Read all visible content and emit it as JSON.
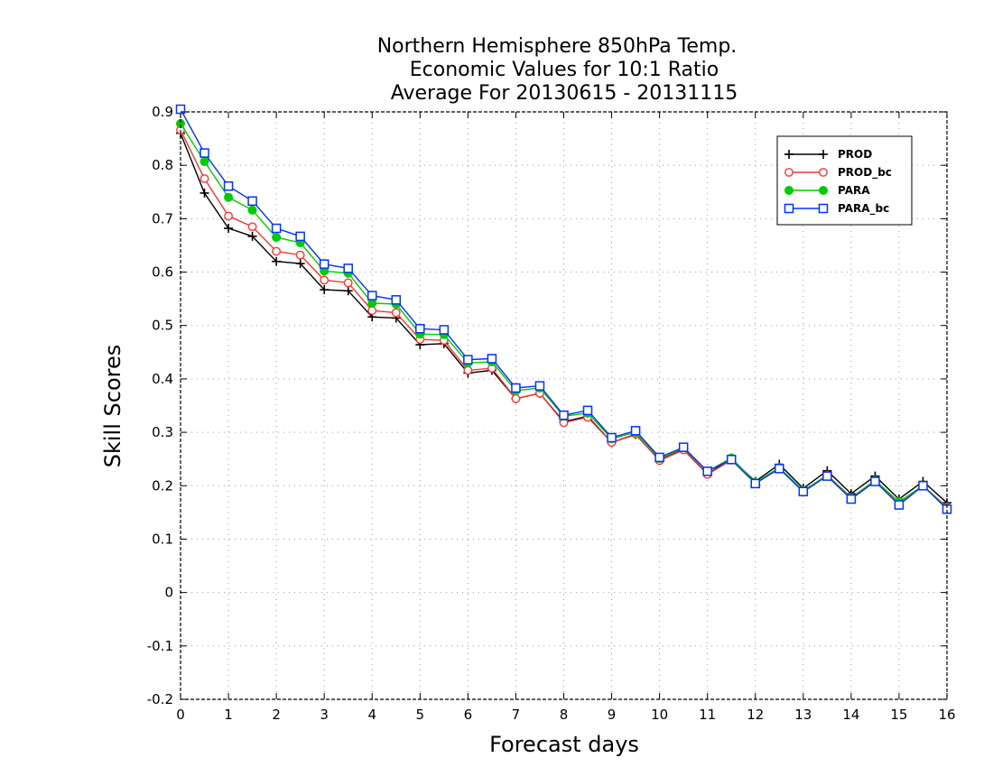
{
  "chart_data": {
    "type": "line",
    "title_lines": [
      "Northern Hemisphere 850hPa Temp.",
      "Economic Values for 10:1 Ratio",
      "Average For 20130615 - 20131115"
    ],
    "xlabel": "Forecast days",
    "ylabel": "Skill Scores",
    "xlim": [
      0,
      16
    ],
    "ylim": [
      -0.2,
      0.9
    ],
    "x_ticks": [
      "0",
      "1",
      "2",
      "3",
      "4",
      "5",
      "6",
      "7",
      "8",
      "9",
      "10",
      "11",
      "12",
      "13",
      "14",
      "15",
      "16"
    ],
    "y_ticks": [
      "0.9",
      "0.8",
      "0.7",
      "0.6",
      "0.5",
      "0.4",
      "0.3",
      "0.2",
      "0.1",
      "0",
      "-0.1",
      "-0.2"
    ],
    "grid": true,
    "legend_position": "top-right",
    "x": [
      0,
      0.5,
      1,
      1.5,
      2,
      2.5,
      3,
      3.5,
      4,
      4.5,
      5,
      5.5,
      6,
      6.5,
      7,
      7.5,
      8,
      8.5,
      9,
      9.5,
      10,
      10.5,
      11,
      11.5,
      12,
      12.5,
      13,
      13.5,
      14,
      14.5,
      15,
      15.5,
      16
    ],
    "series": [
      {
        "name": "PROD",
        "color": "#000000",
        "marker": "plus",
        "values": [
          0.86,
          0.748,
          0.682,
          0.667,
          0.62,
          0.616,
          0.567,
          0.565,
          0.516,
          0.514,
          0.464,
          0.466,
          0.411,
          0.416,
          0.363,
          0.373,
          0.32,
          0.33,
          0.281,
          0.296,
          0.248,
          0.268,
          0.222,
          0.25,
          0.208,
          0.24,
          0.195,
          0.228,
          0.185,
          0.218,
          0.175,
          0.208,
          0.168
        ]
      },
      {
        "name": "PROD_bc",
        "color": "#ff3333",
        "marker": "circle",
        "values": [
          0.866,
          0.775,
          0.705,
          0.685,
          0.639,
          0.632,
          0.585,
          0.58,
          0.528,
          0.524,
          0.474,
          0.472,
          0.416,
          0.42,
          0.363,
          0.373,
          0.318,
          0.328,
          0.281,
          0.297,
          0.247,
          0.267,
          0.221,
          0.248,
          0.205,
          0.232,
          0.19,
          0.22,
          0.178,
          0.21,
          0.168,
          0.2,
          0.16
        ]
      },
      {
        "name": "PARA",
        "color": "#00cc00",
        "marker": "filled-circle",
        "values": [
          0.878,
          0.807,
          0.74,
          0.716,
          0.665,
          0.655,
          0.602,
          0.598,
          0.542,
          0.54,
          0.484,
          0.483,
          0.43,
          0.432,
          0.378,
          0.383,
          0.33,
          0.336,
          0.288,
          0.3,
          0.251,
          0.271,
          0.227,
          0.252,
          0.206,
          0.234,
          0.191,
          0.219,
          0.177,
          0.21,
          0.17,
          0.2,
          0.158
        ]
      },
      {
        "name": "PARA_bc",
        "color": "#0033ff",
        "marker": "square",
        "values": [
          0.905,
          0.823,
          0.761,
          0.733,
          0.682,
          0.667,
          0.615,
          0.607,
          0.556,
          0.548,
          0.494,
          0.492,
          0.436,
          0.438,
          0.383,
          0.387,
          0.332,
          0.341,
          0.29,
          0.303,
          0.253,
          0.272,
          0.227,
          0.249,
          0.204,
          0.232,
          0.189,
          0.218,
          0.175,
          0.208,
          0.164,
          0.2,
          0.156
        ]
      }
    ]
  }
}
